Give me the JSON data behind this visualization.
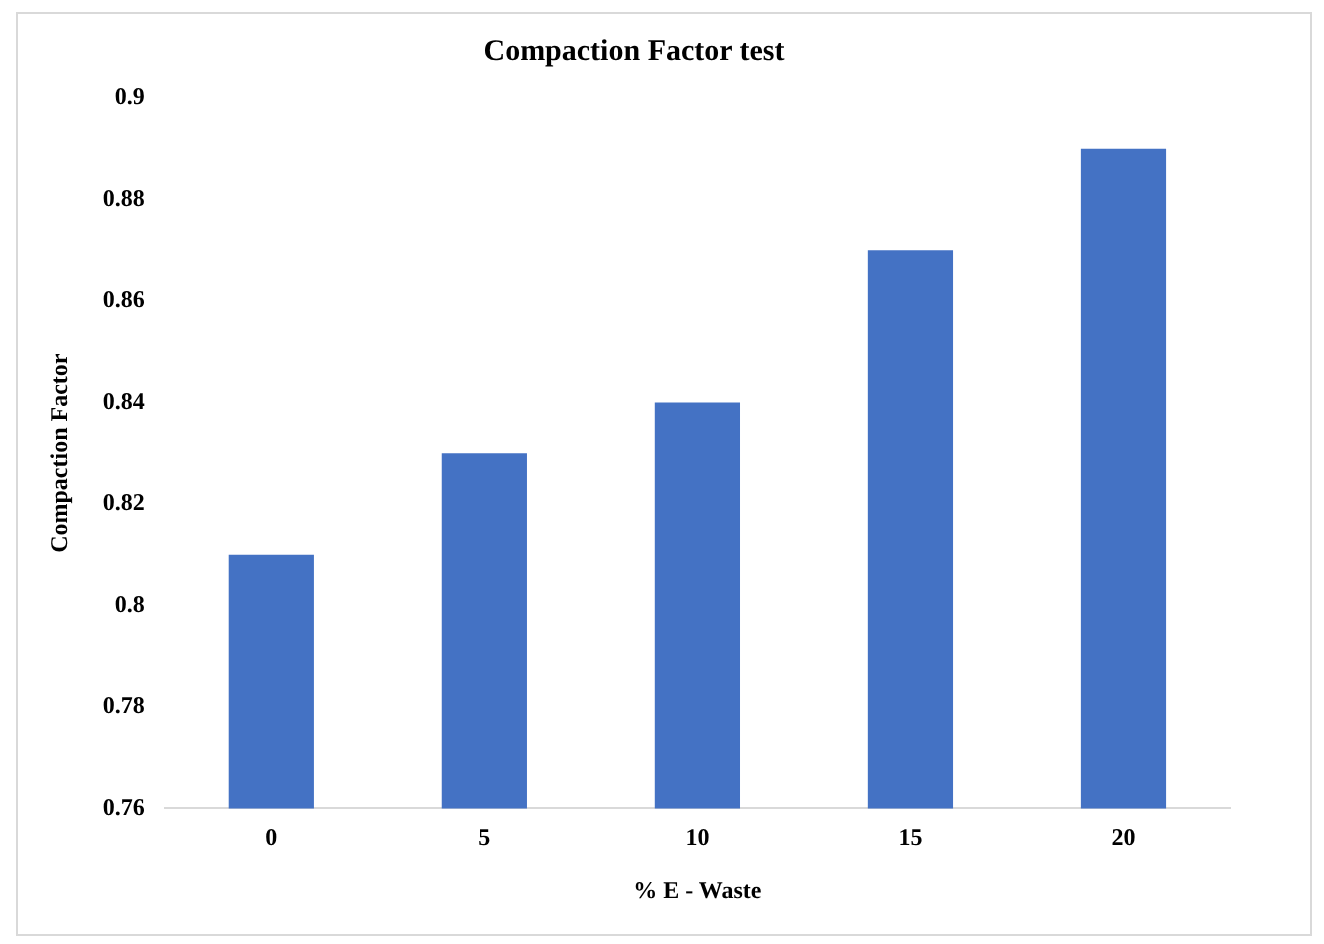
{
  "chart_data": {
    "type": "bar",
    "title": "Compaction Factor test",
    "xlabel": "% E - Waste",
    "ylabel": "Compaction Factor",
    "categories": [
      "0",
      "5",
      "10",
      "15",
      "20"
    ],
    "values": [
      0.81,
      0.83,
      0.84,
      0.87,
      0.89
    ],
    "color": "#4472c4",
    "ylim": [
      0.76,
      0.9
    ],
    "yticks": [
      0.76,
      0.78,
      0.8,
      0.82,
      0.84,
      0.86,
      0.88,
      0.9
    ],
    "grid": false
  }
}
